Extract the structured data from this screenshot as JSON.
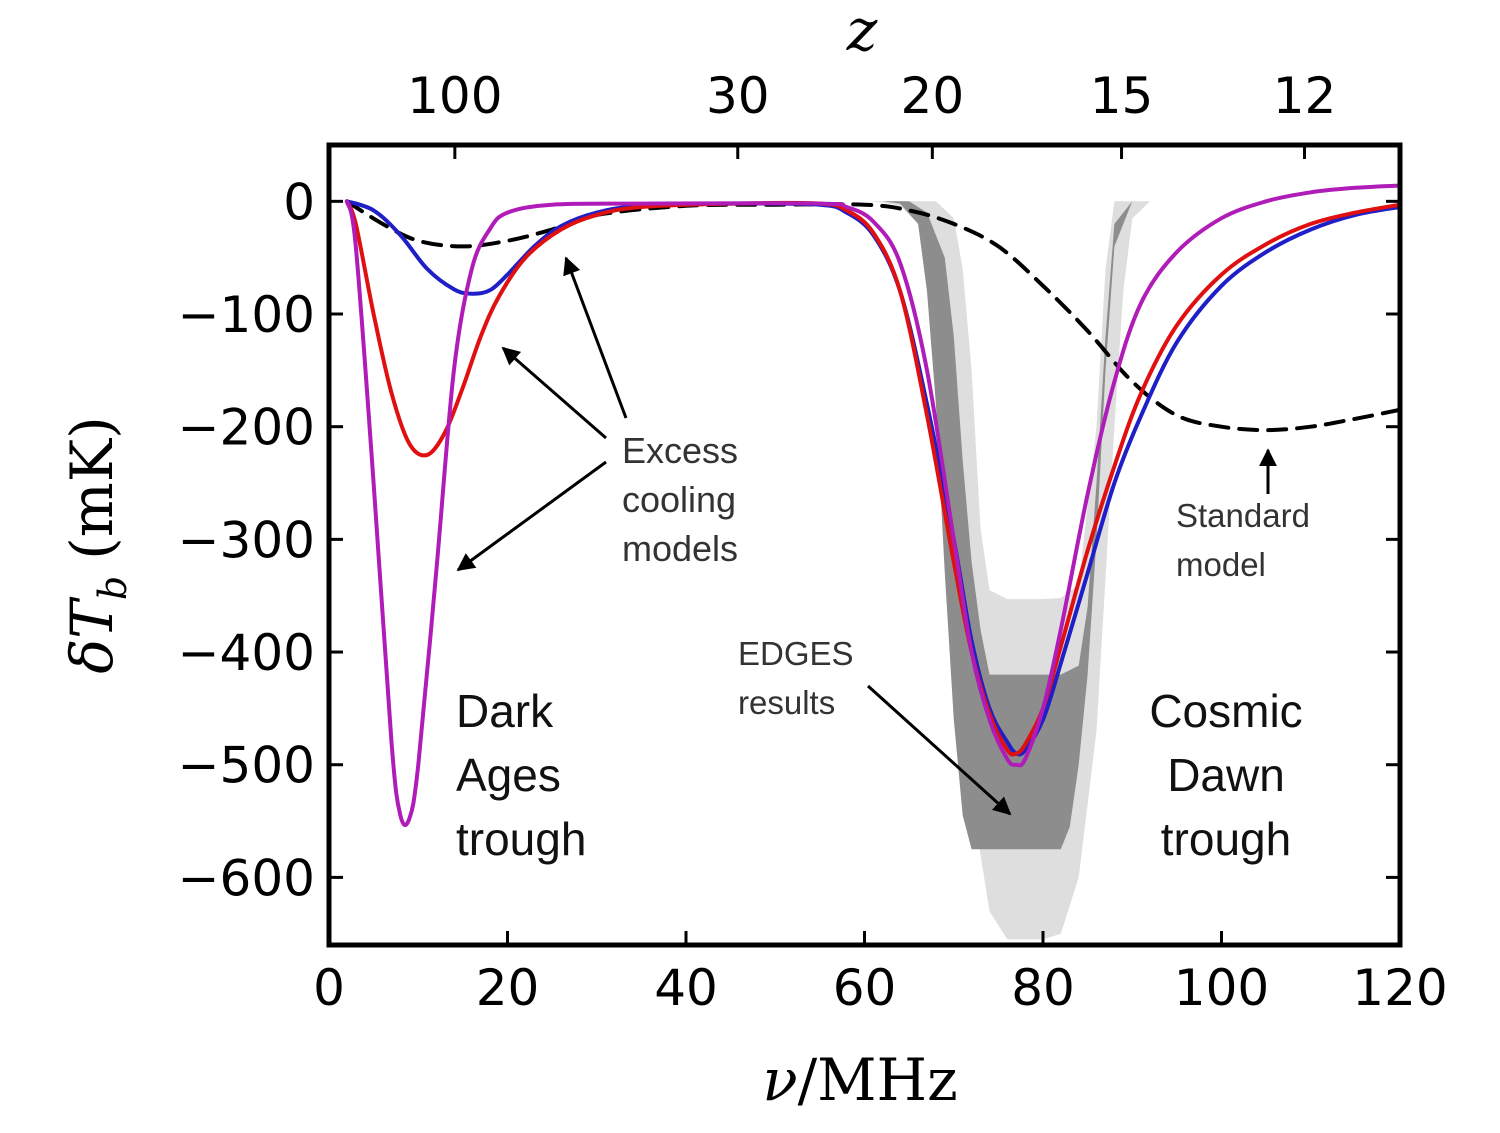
{
  "chart_data": {
    "type": "line",
    "xlabel_italic": "ν",
    "xlabel_rest": "/MHz",
    "ylabel_italic": "δT",
    "ylabel_sub": "b",
    "ylabel_unit": "(mK)",
    "top_axis_label": "z",
    "xlim": [
      0,
      120
    ],
    "ylim": [
      -660,
      50
    ],
    "x_ticks": [
      0,
      20,
      40,
      60,
      80,
      100,
      120
    ],
    "x_tick_labels": [
      "0",
      "20",
      "40",
      "60",
      "80",
      "100",
      "120"
    ],
    "y_ticks": [
      0,
      -100,
      -200,
      -300,
      -400,
      -500,
      -600
    ],
    "y_tick_labels": [
      "0",
      "−100",
      "−200",
      "−300",
      "−400",
      "−500",
      "−600"
    ],
    "top_ticks": [
      {
        "label": "100",
        "nu": 14.1
      },
      {
        "label": "30",
        "nu": 45.8
      },
      {
        "label": "20",
        "nu": 67.6
      },
      {
        "label": "15",
        "nu": 88.8
      },
      {
        "label": "12",
        "nu": 109.3
      }
    ],
    "edges_band": {
      "outer": [
        [
          60,
          0
        ],
        [
          62,
          -1
        ],
        [
          64,
          -4
        ],
        [
          66,
          -20
        ],
        [
          68,
          -100
        ],
        [
          70,
          -300
        ],
        [
          72,
          -530
        ],
        [
          74,
          -630
        ],
        [
          76,
          -655
        ],
        [
          78,
          -655
        ],
        [
          80,
          -655
        ],
        [
          82,
          -650
        ],
        [
          84,
          -600
        ],
        [
          86,
          -470
        ],
        [
          88,
          -200
        ],
        [
          89,
          -80
        ],
        [
          90,
          -15
        ],
        [
          92,
          0
        ],
        [
          120,
          0
        ],
        [
          92,
          0
        ],
        [
          90,
          0
        ],
        [
          88,
          0
        ],
        [
          87,
          -60
        ],
        [
          86,
          -200
        ],
        [
          84,
          -340
        ],
        [
          82,
          -352
        ],
        [
          80,
          -353
        ],
        [
          76,
          -353
        ],
        [
          74,
          -345
        ],
        [
          73,
          -290
        ],
        [
          72,
          -150
        ],
        [
          71,
          -60
        ],
        [
          70,
          -15
        ],
        [
          68,
          0
        ],
        [
          60,
          0
        ]
      ],
      "inner": [
        [
          62,
          0
        ],
        [
          64,
          -2
        ],
        [
          66,
          -20
        ],
        [
          67,
          -80
        ],
        [
          68,
          -180
        ],
        [
          69,
          -330
        ],
        [
          70,
          -460
        ],
        [
          71,
          -545
        ],
        [
          72,
          -575
        ],
        [
          82,
          -575
        ],
        [
          83,
          -555
        ],
        [
          84,
          -500
        ],
        [
          85,
          -420
        ],
        [
          86,
          -300
        ],
        [
          87,
          -150
        ],
        [
          88,
          -40
        ],
        [
          90,
          0
        ],
        [
          93,
          0
        ],
        [
          90,
          0
        ],
        [
          88,
          -20
        ],
        [
          87,
          -120
        ],
        [
          86,
          -250
        ],
        [
          85,
          -360
        ],
        [
          84,
          -412
        ],
        [
          82,
          -420
        ],
        [
          74,
          -420
        ],
        [
          73,
          -380
        ],
        [
          72,
          -320
        ],
        [
          71,
          -230
        ],
        [
          70,
          -120
        ],
        [
          69,
          -50
        ],
        [
          67,
          -10
        ],
        [
          65,
          0
        ],
        [
          62,
          0
        ]
      ]
    },
    "series": [
      {
        "color": "#000000",
        "dashed": true,
        "points": [
          [
            2,
            0
          ],
          [
            6,
            -20
          ],
          [
            10,
            -35
          ],
          [
            15,
            -40
          ],
          [
            20,
            -35
          ],
          [
            25,
            -25
          ],
          [
            30,
            -12
          ],
          [
            40,
            -4
          ],
          [
            50,
            -3
          ],
          [
            60,
            -3
          ],
          [
            65,
            -8
          ],
          [
            70,
            -20
          ],
          [
            75,
            -40
          ],
          [
            80,
            -75
          ],
          [
            85,
            -115
          ],
          [
            90,
            -160
          ],
          [
            95,
            -190
          ],
          [
            100,
            -200
          ],
          [
            105,
            -203
          ],
          [
            110,
            -200
          ],
          [
            115,
            -193
          ],
          [
            120,
            -185
          ]
        ]
      },
      {
        "color": "#1f1fc8",
        "dashed": false,
        "points": [
          [
            2,
            0
          ],
          [
            5,
            -8
          ],
          [
            8,
            -30
          ],
          [
            11,
            -60
          ],
          [
            14,
            -78
          ],
          [
            16,
            -82
          ],
          [
            18,
            -79
          ],
          [
            20,
            -65
          ],
          [
            23,
            -40
          ],
          [
            26,
            -22
          ],
          [
            30,
            -10
          ],
          [
            35,
            -4
          ],
          [
            45,
            -2
          ],
          [
            55,
            -3
          ],
          [
            58,
            -10
          ],
          [
            61,
            -30
          ],
          [
            64,
            -80
          ],
          [
            67,
            -180
          ],
          [
            70,
            -300
          ],
          [
            72,
            -390
          ],
          [
            74,
            -450
          ],
          [
            76,
            -480
          ],
          [
            77,
            -490
          ],
          [
            78,
            -487
          ],
          [
            80,
            -460
          ],
          [
            82,
            -410
          ],
          [
            85,
            -330
          ],
          [
            88,
            -250
          ],
          [
            91,
            -190
          ],
          [
            95,
            -125
          ],
          [
            100,
            -75
          ],
          [
            105,
            -45
          ],
          [
            110,
            -25
          ],
          [
            115,
            -12
          ],
          [
            120,
            -5
          ]
        ]
      },
      {
        "color": "#e01010",
        "dashed": false,
        "points": [
          [
            2,
            0
          ],
          [
            3,
            -20
          ],
          [
            5,
            -100
          ],
          [
            7,
            -170
          ],
          [
            9,
            -215
          ],
          [
            11,
            -225
          ],
          [
            13,
            -205
          ],
          [
            15,
            -165
          ],
          [
            17,
            -120
          ],
          [
            19,
            -85
          ],
          [
            22,
            -50
          ],
          [
            26,
            -25
          ],
          [
            30,
            -12
          ],
          [
            35,
            -5
          ],
          [
            45,
            -2
          ],
          [
            55,
            -2
          ],
          [
            58,
            -8
          ],
          [
            61,
            -28
          ],
          [
            64,
            -80
          ],
          [
            67,
            -190
          ],
          [
            70,
            -320
          ],
          [
            72,
            -400
          ],
          [
            74,
            -455
          ],
          [
            76,
            -487
          ],
          [
            77,
            -490
          ],
          [
            78,
            -482
          ],
          [
            80,
            -450
          ],
          [
            82,
            -395
          ],
          [
            85,
            -310
          ],
          [
            88,
            -235
          ],
          [
            91,
            -170
          ],
          [
            95,
            -110
          ],
          [
            100,
            -65
          ],
          [
            105,
            -38
          ],
          [
            110,
            -20
          ],
          [
            115,
            -10
          ],
          [
            120,
            -3
          ]
        ]
      },
      {
        "color": "#b01cb8",
        "dashed": false,
        "points": [
          [
            2,
            0
          ],
          [
            3,
            -40
          ],
          [
            5,
            -250
          ],
          [
            7,
            -480
          ],
          [
            8,
            -545
          ],
          [
            9,
            -548
          ],
          [
            10,
            -500
          ],
          [
            12,
            -330
          ],
          [
            14,
            -150
          ],
          [
            16,
            -60
          ],
          [
            18,
            -25
          ],
          [
            20,
            -10
          ],
          [
            25,
            -3
          ],
          [
            35,
            -2
          ],
          [
            55,
            -2
          ],
          [
            58,
            -5
          ],
          [
            61,
            -18
          ],
          [
            64,
            -55
          ],
          [
            67,
            -150
          ],
          [
            70,
            -300
          ],
          [
            72,
            -400
          ],
          [
            74,
            -460
          ],
          [
            76,
            -495
          ],
          [
            77,
            -500
          ],
          [
            78,
            -495
          ],
          [
            80,
            -450
          ],
          [
            82,
            -380
          ],
          [
            85,
            -260
          ],
          [
            88,
            -160
          ],
          [
            91,
            -90
          ],
          [
            95,
            -45
          ],
          [
            100,
            -15
          ],
          [
            105,
            0
          ],
          [
            110,
            8
          ],
          [
            115,
            12
          ],
          [
            120,
            14
          ]
        ]
      }
    ],
    "annotations": {
      "excess_1": "Excess",
      "excess_2": "cooling",
      "excess_3": "models",
      "standard_1": "Standard",
      "standard_2": "model",
      "edges_1": "EDGES",
      "edges_2": "results",
      "dark_1": "Dark",
      "dark_2": "Ages",
      "dark_3": "trough",
      "cosmic_1": "Cosmic",
      "cosmic_2": "Dawn",
      "cosmic_3": "trough"
    }
  }
}
